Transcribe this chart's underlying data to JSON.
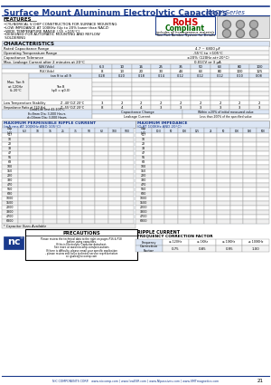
{
  "title": "Surface Mount Aluminum Electrolytic Capacitors",
  "series": "NACY Series",
  "features": [
    "CYLINDRICAL V-CHIP CONSTRUCTION FOR SURFACE MOUNTING",
    "LOW IMPEDANCE AT 100KHz (Up to 20% lower than NACZ)",
    "WIDE TEMPERATURE RANGE (-55 +105°C)",
    "DESIGNED FOR AUTOMATIC MOUNTING AND REFLOW",
    "  SOLDERING"
  ],
  "rohs_sub": "includes all homogeneous materials",
  "part_note": "*See Part Number System for Details",
  "char_title": "CHARACTERISTICS",
  "char_rows": [
    [
      "Rated Capacitance Range",
      "4.7 ~ 6800 μF"
    ],
    [
      "Operating Temperature Range",
      "-55°C to +105°C"
    ],
    [
      "Capacitance Tolerance",
      "±20% (120Hz at+20°C)"
    ],
    [
      "Max. Leakage Current after 2 minutes at 20°C",
      "0.01CV or 3 μA"
    ]
  ],
  "wv_vals": [
    "6.3",
    "10",
    "16",
    "25",
    "35",
    "50",
    "63",
    "80",
    "100"
  ],
  "rv_vals": [
    "8",
    "13",
    "20",
    "33",
    "44",
    "63",
    "80",
    "100",
    "125"
  ],
  "tan_d_vals": [
    "0.28",
    "0.20",
    "0.18",
    "0.14",
    "0.12",
    "0.12",
    "0.12",
    "0.10",
    "0.08"
  ],
  "temp_stability_rows": [
    [
      "Z -40°C/Z 20°C",
      "3",
      "2",
      "2",
      "2",
      "2",
      "2",
      "2",
      "2",
      "2"
    ],
    [
      "Z -55°C/Z 20°C",
      "8",
      "4",
      "4",
      "3",
      "3",
      "3",
      "3",
      "3",
      "3"
    ]
  ],
  "ripple_cap_col": [
    "4.7",
    "10",
    "22",
    "33",
    "47",
    "56",
    "68",
    "100",
    "150",
    "220",
    "330",
    "470",
    "560",
    "680",
    "1000",
    "1500",
    "2200",
    "3300",
    "4700",
    "6800"
  ],
  "ripple_wv_cols": [
    "6.3",
    "10",
    "16",
    "25",
    "35",
    "50",
    "63",
    "100",
    "500"
  ],
  "imp_wv_cols": [
    "10.0",
    "50",
    "100",
    "125",
    "25",
    "50",
    "100",
    "160",
    "500"
  ],
  "freq_col": [
    "Frequency",
    "≤ 120Hz",
    "≤ 1KHz",
    "≤ 10KHz",
    "≥ 100KHz"
  ],
  "correction_factor": [
    "Correction\nFactor",
    "0.75",
    "0.85",
    "0.95",
    "1.00"
  ],
  "footer": "NIC COMPONENTS CORP.   www.niccomp.com | www.lowESR.com | www.NIpassives.com | www.SMTmagnetics.com",
  "page": "21",
  "bg_color": "#ffffff",
  "header_blue": "#1a3a8c",
  "table_border": "#999999",
  "rohs_red": "#cc0000",
  "rohs_green": "#006600",
  "section_bg": "#dce6f5",
  "nc_blue": "#1a3a8c",
  "watermark_blue": "#b0c8e8"
}
